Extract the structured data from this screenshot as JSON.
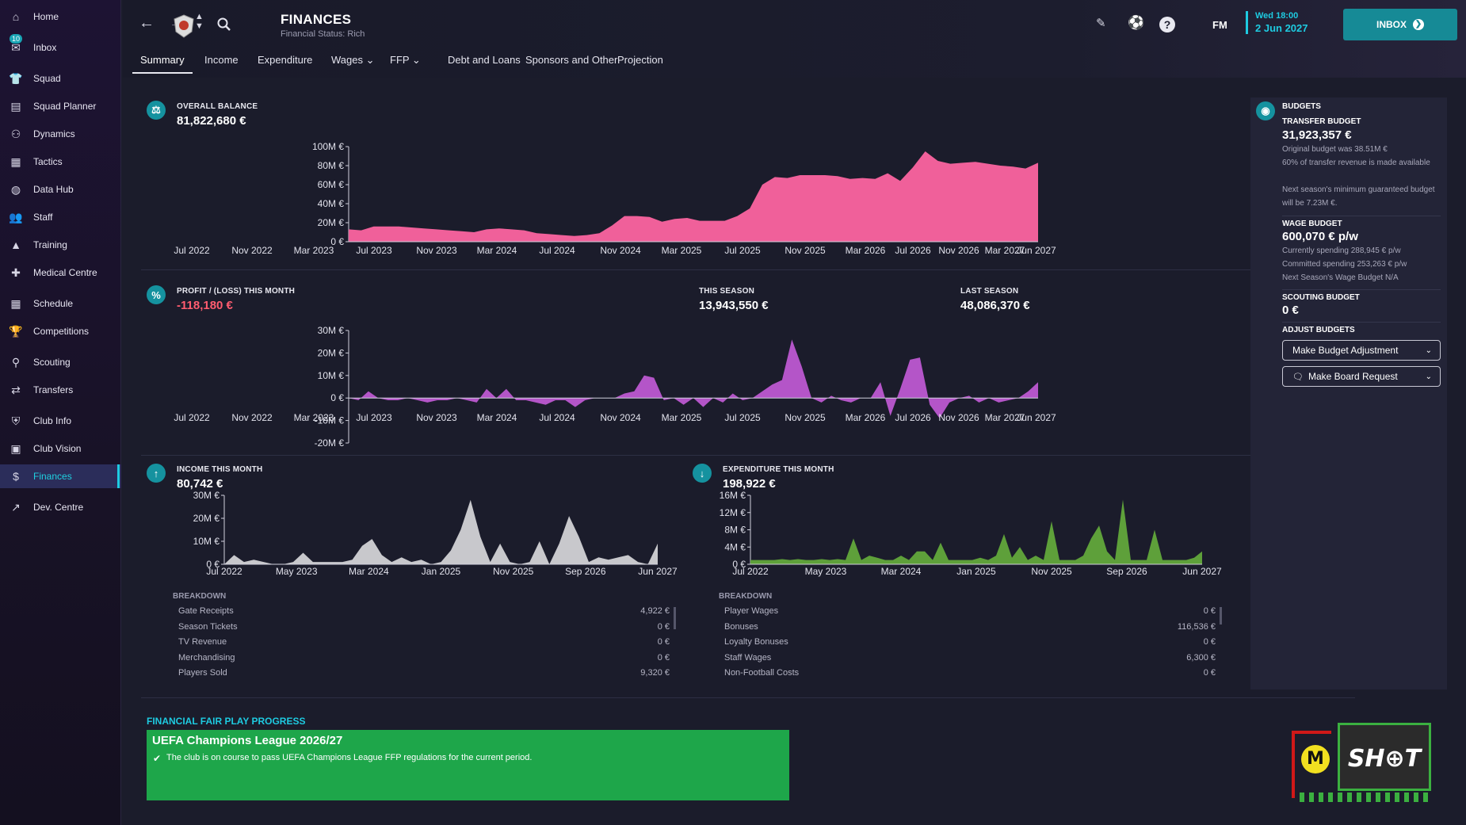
{
  "sidebar": {
    "items": [
      {
        "label": "Home",
        "icon": "home-icon",
        "glyph": "⌂"
      },
      {
        "label": "Inbox",
        "icon": "inbox-icon",
        "glyph": "✉",
        "badge": "10"
      },
      {
        "label": "Squad",
        "icon": "squad-icon",
        "glyph": "👕"
      },
      {
        "label": "Squad Planner",
        "icon": "squad-planner-icon",
        "glyph": "▤"
      },
      {
        "label": "Dynamics",
        "icon": "dynamics-icon",
        "glyph": "⚇"
      },
      {
        "label": "Tactics",
        "icon": "tactics-icon",
        "glyph": "▦"
      },
      {
        "label": "Data Hub",
        "icon": "data-hub-icon",
        "glyph": "◍"
      },
      {
        "label": "Staff",
        "icon": "staff-icon",
        "glyph": "👥"
      },
      {
        "label": "Training",
        "icon": "training-icon",
        "glyph": "▲"
      },
      {
        "label": "Medical Centre",
        "icon": "medical-icon",
        "glyph": "✚"
      },
      {
        "label": "Schedule",
        "icon": "schedule-icon",
        "glyph": "▦"
      },
      {
        "label": "Competitions",
        "icon": "trophy-icon",
        "glyph": "🏆"
      },
      {
        "label": "Scouting",
        "icon": "scouting-icon",
        "glyph": "⚲"
      },
      {
        "label": "Transfers",
        "icon": "transfers-icon",
        "glyph": "⇄"
      },
      {
        "label": "Club Info",
        "icon": "club-info-icon",
        "glyph": "⛨"
      },
      {
        "label": "Club Vision",
        "icon": "club-vision-icon",
        "glyph": "▣"
      },
      {
        "label": "Finances",
        "icon": "finances-icon",
        "glyph": "$",
        "active": true
      },
      {
        "label": "Dev. Centre",
        "icon": "dev-centre-icon",
        "glyph": "↗"
      }
    ]
  },
  "header": {
    "title": "FINANCES",
    "subtitle": "Financial Status: Rich",
    "fm_label": "FM",
    "date_day": "Wed 18:00",
    "date_full": "2 Jun 2027",
    "inbox_label": "INBOX"
  },
  "tabs": [
    {
      "label": "Summary",
      "active": true
    },
    {
      "label": "Income"
    },
    {
      "label": "Expenditure"
    },
    {
      "label": "Wages ⌄"
    },
    {
      "label": "FFP ⌄"
    },
    {
      "label": "Debt and Loans"
    },
    {
      "label": "Sponsors and Other"
    },
    {
      "label": "Projection"
    }
  ],
  "balance": {
    "label": "OVERALL BALANCE",
    "value": "81,822,680 €"
  },
  "profit": {
    "label": "PROFIT / (LOSS) THIS MONTH",
    "value": "-118,180 €",
    "this_season_label": "THIS SEASON",
    "this_season_value": "13,943,550 €",
    "last_season_label": "LAST SEASON",
    "last_season_value": "48,086,370 €"
  },
  "income": {
    "label": "INCOME THIS MONTH",
    "value": "80,742 €",
    "breakdown_title": "BREAKDOWN",
    "rows": [
      {
        "name": "Gate Receipts",
        "value": "4,922 €"
      },
      {
        "name": "Season Tickets",
        "value": "0 €"
      },
      {
        "name": "TV Revenue",
        "value": "0 €"
      },
      {
        "name": "Merchandising",
        "value": "0 €"
      },
      {
        "name": "Players Sold",
        "value": "9,320 €"
      }
    ]
  },
  "expenditure": {
    "label": "EXPENDITURE THIS MONTH",
    "value": "198,922 €",
    "breakdown_title": "BREAKDOWN",
    "rows": [
      {
        "name": "Player Wages",
        "value": "0 €"
      },
      {
        "name": "Bonuses",
        "value": "116,536 €"
      },
      {
        "name": "Loyalty Bonuses",
        "value": "0 €"
      },
      {
        "name": "Staff Wages",
        "value": "6,300 €"
      },
      {
        "name": "Non-Football Costs",
        "value": "0 €"
      }
    ]
  },
  "budgets": {
    "title": "BUDGETS",
    "transfer_label": "TRANSFER BUDGET",
    "transfer_value": "31,923,357 €",
    "transfer_note1": "Original budget was 38.51M €",
    "transfer_note2": "60% of transfer revenue is made available",
    "transfer_note3": "Next season's minimum guaranteed budget will be 7.23M €.",
    "wage_label": "WAGE BUDGET",
    "wage_value": "600,070 € p/w",
    "wage_note1": "Currently spending 288,945 € p/w",
    "wage_note2": "Committed spending 253,263 € p/w",
    "wage_note3": "Next Season's Wage Budget N/A",
    "scouting_label": "SCOUTING BUDGET",
    "scouting_value": "0 €",
    "adjust_label": "ADJUST BUDGETS",
    "adjust_btn": "Make Budget Adjustment",
    "board_btn": "Make Board Request"
  },
  "ffp": {
    "title": "FINANCIAL FAIR PLAY PROGRESS",
    "competition": "UEFA Champions League 2026/27",
    "status": "The club is on course to pass UEFA Champions League FFP regulations for the current period."
  },
  "watermark": {
    "text": "FM SHOT"
  },
  "colors": {
    "accent": "#1ecbe1",
    "balance": "#f0609a",
    "profit": "#b455c8",
    "income": "#c8c8cc",
    "expenditure": "#5ea03a",
    "ffp": "#1ea64a"
  },
  "chart_data": [
    {
      "type": "area",
      "title": "OVERALL BALANCE",
      "x_labels": [
        "Jul 2022",
        "Nov 2022",
        "Mar 2023",
        "Jul 2023",
        "Nov 2023",
        "Mar 2024",
        "Jul 2024",
        "Nov 2024",
        "Mar 2025",
        "Jul 2025",
        "Nov 2025",
        "Mar 2026",
        "Jul 2026",
        "Nov 2026",
        "Mar 2027",
        "Jun 2027"
      ],
      "y_ticks": [
        "0 €",
        "20M €",
        "40M €",
        "60M €",
        "80M €",
        "100M €"
      ],
      "ylim": [
        0,
        100
      ],
      "unit": "M €",
      "values": [
        13,
        12,
        16,
        16,
        16,
        15,
        14,
        13,
        12,
        11,
        10,
        13,
        14,
        13,
        12,
        9,
        8,
        7,
        6,
        7,
        9,
        17,
        27,
        27,
        26,
        21,
        24,
        25,
        22,
        22,
        22,
        27,
        35,
        60,
        68,
        67,
        70,
        70,
        70,
        69,
        66,
        67,
        66,
        72,
        64,
        78,
        95,
        85,
        82,
        83,
        84,
        82,
        80,
        79,
        77,
        83
      ]
    },
    {
      "type": "area",
      "title": "PROFIT / (LOSS) THIS MONTH",
      "x_labels": [
        "Jul 2022",
        "Nov 2022",
        "Mar 2023",
        "Jul 2023",
        "Nov 2023",
        "Mar 2024",
        "Jul 2024",
        "Nov 2024",
        "Mar 2025",
        "Jul 2025",
        "Nov 2025",
        "Mar 2026",
        "Jul 2026",
        "Nov 2026",
        "Mar 2027",
        "Jun 2027"
      ],
      "y_ticks": [
        "-20M €",
        "-10M €",
        "0 €",
        "10M €",
        "20M €",
        "30M €"
      ],
      "ylim": [
        -20,
        30
      ],
      "unit": "M €",
      "values": [
        0,
        -1,
        3,
        0,
        -1,
        -1,
        0,
        -1,
        -2,
        -1,
        -1,
        0,
        -1,
        -2,
        4,
        0,
        4,
        -1,
        -1,
        -2,
        -3,
        -1,
        -1,
        -4,
        -1,
        0,
        0,
        0,
        2,
        3,
        10,
        9,
        -1,
        0,
        -3,
        0,
        -4,
        0,
        -2,
        2,
        -1,
        0,
        3,
        6,
        8,
        26,
        14,
        0,
        -2,
        1,
        -1,
        -2,
        0,
        0,
        7,
        -8,
        4,
        17,
        18,
        -3,
        -9,
        -2,
        0,
        1,
        -2,
        0,
        -2,
        -1,
        0,
        3,
        7
      ]
    },
    {
      "type": "area",
      "title": "INCOME THIS MONTH",
      "x_labels": [
        "Jul 2022",
        "May 2023",
        "Mar 2024",
        "Jan 2025",
        "Nov 2025",
        "Sep 2026",
        "Jun 2027"
      ],
      "y_ticks": [
        "0 €",
        "10M €",
        "20M €",
        "30M €"
      ],
      "ylim": [
        0,
        30
      ],
      "unit": "M €",
      "values": [
        0,
        4,
        1,
        2,
        1,
        0,
        0,
        1,
        5,
        1,
        1,
        1,
        1,
        2,
        8,
        11,
        4,
        1,
        3,
        1,
        2,
        0,
        1,
        6,
        15,
        28,
        12,
        1,
        9,
        1,
        0,
        1,
        10,
        0,
        9,
        21,
        12,
        1,
        3,
        2,
        3,
        4,
        1,
        0,
        9
      ]
    },
    {
      "type": "area",
      "title": "EXPENDITURE THIS MONTH",
      "x_labels": [
        "Jul 2022",
        "May 2023",
        "Mar 2024",
        "Jan 2025",
        "Nov 2025",
        "Sep 2026",
        "Jun 2027"
      ],
      "y_ticks": [
        "0 €",
        "4M €",
        "8M €",
        "12M €",
        "16M €"
      ],
      "ylim": [
        0,
        16
      ],
      "unit": "M €",
      "values": [
        1,
        1,
        1,
        1,
        1.2,
        1,
        1.2,
        1,
        1,
        1.2,
        1,
        1.2,
        1,
        6,
        1,
        2,
        1.5,
        1,
        1,
        2,
        1,
        3,
        3,
        1,
        5,
        1,
        1,
        1,
        1,
        1.5,
        1,
        2,
        7,
        1.5,
        4,
        1,
        2,
        1,
        10,
        1,
        1,
        1,
        2,
        6,
        9,
        3,
        1,
        15,
        1,
        1,
        1,
        8,
        1,
        1,
        1,
        1,
        1.5,
        3
      ]
    }
  ]
}
